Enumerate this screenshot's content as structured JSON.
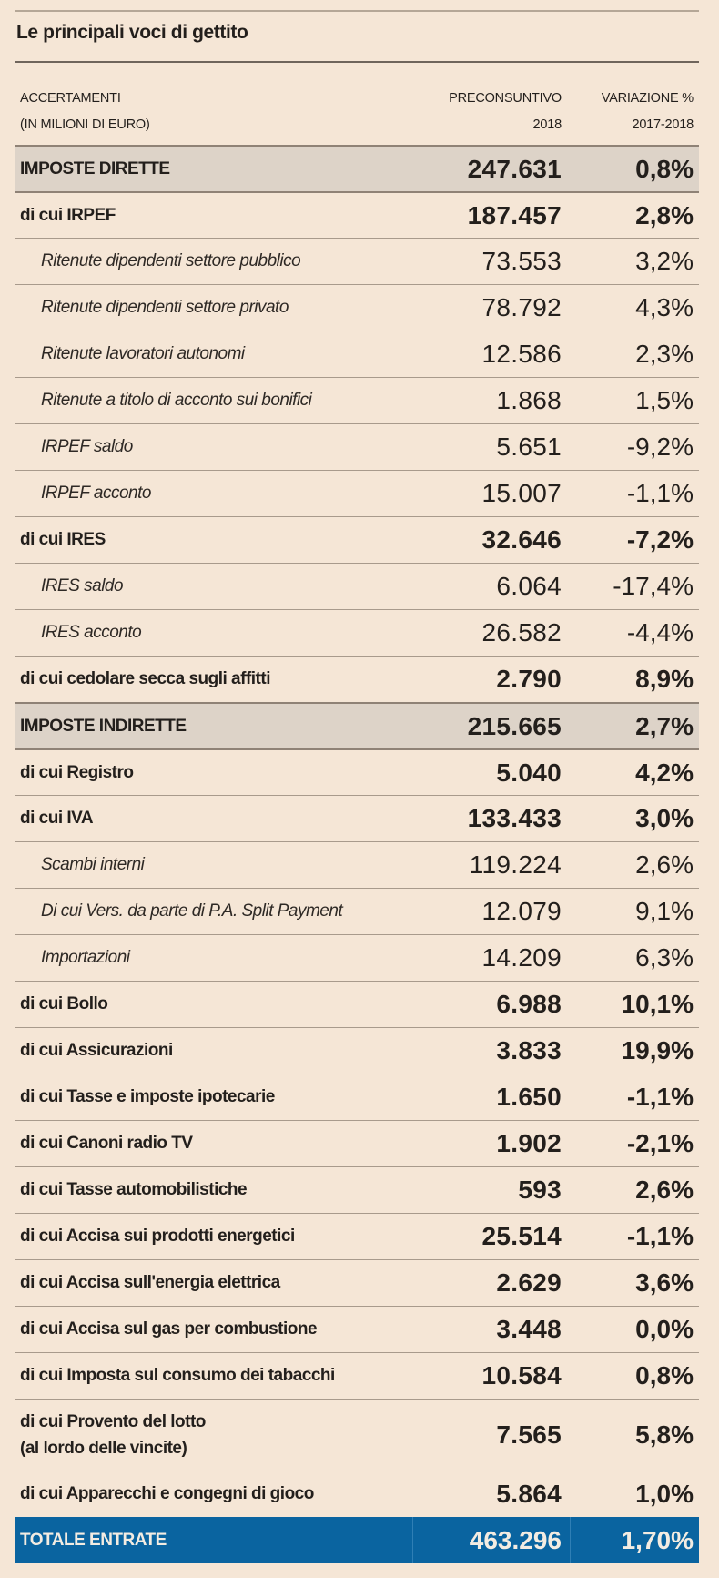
{
  "title": "Le principali voci di gettito",
  "header": {
    "col1_line1": "ACCERTAMENTI",
    "col1_line2": "(IN MILIONI DI EURO)",
    "col2_line1": "PRECONSUNTIVO",
    "col2_line2": "2018",
    "col3_line1": "VARIAZIONE %",
    "col3_line2": "2017-2018"
  },
  "rows": [
    {
      "label": "IMPOSTE DIRETTE",
      "value": "247.631",
      "pct": "0,8%",
      "level": "major"
    },
    {
      "label": "di cui IRPEF",
      "value": "187.457",
      "pct": "2,8%",
      "level": "main"
    },
    {
      "label": "Ritenute dipendenti settore pubblico",
      "value": "73.553",
      "pct": "3,2%",
      "level": "sub"
    },
    {
      "label": "Ritenute dipendenti settore privato",
      "value": "78.792",
      "pct": "4,3%",
      "level": "sub"
    },
    {
      "label": "Ritenute lavoratori autonomi",
      "value": "12.586",
      "pct": "2,3%",
      "level": "sub"
    },
    {
      "label": "Ritenute a titolo di acconto sui bonifici",
      "value": "1.868",
      "pct": "1,5%",
      "level": "sub"
    },
    {
      "label": "IRPEF saldo",
      "value": "5.651",
      "pct": "-9,2%",
      "level": "sub"
    },
    {
      "label": "IRPEF acconto",
      "value": "15.007",
      "pct": "-1,1%",
      "level": "sub"
    },
    {
      "label": "di cui IRES",
      "value": "32.646",
      "pct": "-7,2%",
      "level": "main"
    },
    {
      "label": "IRES saldo",
      "value": "6.064",
      "pct": "-17,4%",
      "level": "sub"
    },
    {
      "label": "IRES acconto",
      "value": "26.582",
      "pct": "-4,4%",
      "level": "sub"
    },
    {
      "label": "di cui cedolare secca sugli affitti",
      "value": "2.790",
      "pct": "8,9%",
      "level": "main"
    },
    {
      "label": "IMPOSTE INDIRETTE",
      "value": "215.665",
      "pct": "2,7%",
      "level": "major"
    },
    {
      "label": "di cui Registro",
      "value": "5.040",
      "pct": "4,2%",
      "level": "main"
    },
    {
      "label": "di cui IVA",
      "value": "133.433",
      "pct": "3,0%",
      "level": "main"
    },
    {
      "label": "Scambi interni",
      "value": "119.224",
      "pct": "2,6%",
      "level": "sub"
    },
    {
      "label": "Di cui Vers. da parte di P.A. Split Payment",
      "value": "12.079",
      "pct": "9,1%",
      "level": "sub"
    },
    {
      "label": "Importazioni",
      "value": "14.209",
      "pct": "6,3%",
      "level": "sub"
    },
    {
      "label": "di cui Bollo",
      "value": "6.988",
      "pct": "10,1%",
      "level": "main"
    },
    {
      "label": "di cui Assicurazioni",
      "value": "3.833",
      "pct": "19,9%",
      "level": "main"
    },
    {
      "label": "di cui Tasse e imposte ipotecarie",
      "value": "1.650",
      "pct": "-1,1%",
      "level": "main"
    },
    {
      "label": "di cui Canoni radio TV",
      "value": "1.902",
      "pct": "-2,1%",
      "level": "main"
    },
    {
      "label": "di cui Tasse automobilistiche",
      "value": "593",
      "pct": "2,6%",
      "level": "main"
    },
    {
      "label": "di cui Accisa sui prodotti energetici",
      "value": "25.514",
      "pct": "-1,1%",
      "level": "main"
    },
    {
      "label": "di cui Accisa sull'energia elettrica",
      "value": "2.629",
      "pct": "3,6%",
      "level": "main"
    },
    {
      "label": "di cui Accisa sul gas per combustione",
      "value": "3.448",
      "pct": "0,0%",
      "level": "main"
    },
    {
      "label": "di cui Imposta sul consumo dei tabacchi",
      "value": "10.584",
      "pct": "0,8%",
      "level": "main"
    },
    {
      "label": "di cui Provento del lotto",
      "label_line2": "(al lordo delle vincite)",
      "value": "7.565",
      "pct": "5,8%",
      "level": "main"
    },
    {
      "label": "di cui Apparecchi e congegni di gioco",
      "value": "5.864",
      "pct": "1,0%",
      "level": "main"
    }
  ],
  "total": {
    "label": "TOTALE ENTRATE",
    "value": "463.296",
    "pct": "1,70%"
  },
  "colors": {
    "background": "#f5e6d6",
    "shaded_row": "#ddd3c8",
    "total_bar": "#0a64a0",
    "text": "#231f1c",
    "rule": "#a89a8c"
  }
}
